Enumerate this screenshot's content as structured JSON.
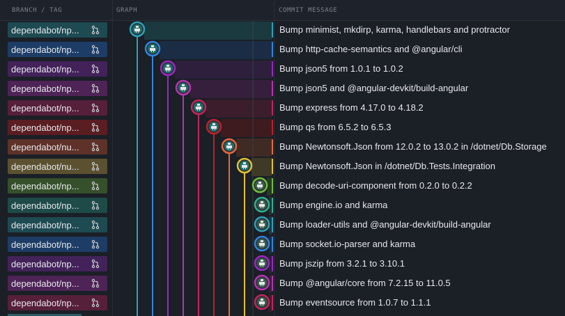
{
  "header": {
    "branch_tag": "BRANCH / TAG",
    "graph": "GRAPH",
    "commit_message": "COMMIT MESSAGE"
  },
  "icons": {
    "branch": "pull-request-icon",
    "avatar": "bot-avatar-icon"
  },
  "commits": [
    {
      "branch": "dependabot/np...",
      "message": "Bump minimist, mkdirp, karma, handlebars and protractor",
      "color": "#29a3b8",
      "pill": "#1e4a52",
      "band": "#1b3a40"
    },
    {
      "branch": "dependabot/np...",
      "message": "Bump http-cache-semantics and @angular/cli",
      "color": "#2e86de",
      "pill": "#1d3d66",
      "band": "#1b2c45"
    },
    {
      "branch": "dependabot/np...",
      "message": "Bump json5 from 1.0.1 to 1.0.2",
      "color": "#9b27c4",
      "pill": "#43225a",
      "band": "#2e1f3d"
    },
    {
      "branch": "dependabot/np...",
      "message": "Bump json5 and @angular-devkit/build-angular",
      "color": "#b833b3",
      "pill": "#4e2356",
      "band": "#361f3c"
    },
    {
      "branch": "dependabot/np...",
      "message": "Bump express from 4.17.0 to 4.18.2",
      "color": "#c2255c",
      "pill": "#561f3a",
      "band": "#3b1d2c"
    },
    {
      "branch": "dependabot/np...",
      "message": "Bump qs from 6.5.2 to 6.5.3",
      "color": "#c0202a",
      "pill": "#5a1d22",
      "band": "#3e1b1f"
    },
    {
      "branch": "dependabot/nu...",
      "message": "Bump Newtonsoft.Json from 12.0.2 to 13.0.2 in /dotnet/Db.Storage",
      "color": "#e8683a",
      "pill": "#5e3229",
      "band": "#402a24"
    },
    {
      "branch": "dependabot/nu...",
      "message": "Bump Newtonsoft.Json in /dotnet/Db.Tests.Integration",
      "color": "#e5c02e",
      "pill": "#5b5130",
      "band": "#3f3a26"
    },
    {
      "branch": "dependabot/np...",
      "message": "Bump decode-uri-component from 0.2.0 to 0.2.2",
      "color": "#6fbf3a",
      "pill": "#35502a",
      "band": "#263a22"
    },
    {
      "branch": "dependabot/np...",
      "message": "Bump engine.io and karma",
      "color": "#2fb38f",
      "pill": "#1e4a48",
      "band": "#1d3535"
    },
    {
      "branch": "dependabot/np...",
      "message": "Bump loader-utils and @angular-devkit/build-angular",
      "color": "#29a3b8",
      "pill": "#1e4a52",
      "band": "#1b3a40"
    },
    {
      "branch": "dependabot/np...",
      "message": "Bump socket.io-parser and karma",
      "color": "#2e86de",
      "pill": "#1d3d66",
      "band": "#1b2c45"
    },
    {
      "branch": "dependabot/np...",
      "message": "Bump jszip from 3.2.1 to 3.10.1",
      "color": "#9b27c4",
      "pill": "#43225a",
      "band": "#2e1f3d"
    },
    {
      "branch": "dependabot/np...",
      "message": "Bump @angular/core from 7.2.15 to 11.0.5",
      "color": "#b833b3",
      "pill": "#4e2356",
      "band": "#361f3c"
    },
    {
      "branch": "dependabot/np...",
      "message": "Bump eventsource from 1.0.7 to 1.1.1",
      "color": "#c2255c",
      "pill": "#561f3a",
      "band": "#3b1d2c"
    }
  ]
}
